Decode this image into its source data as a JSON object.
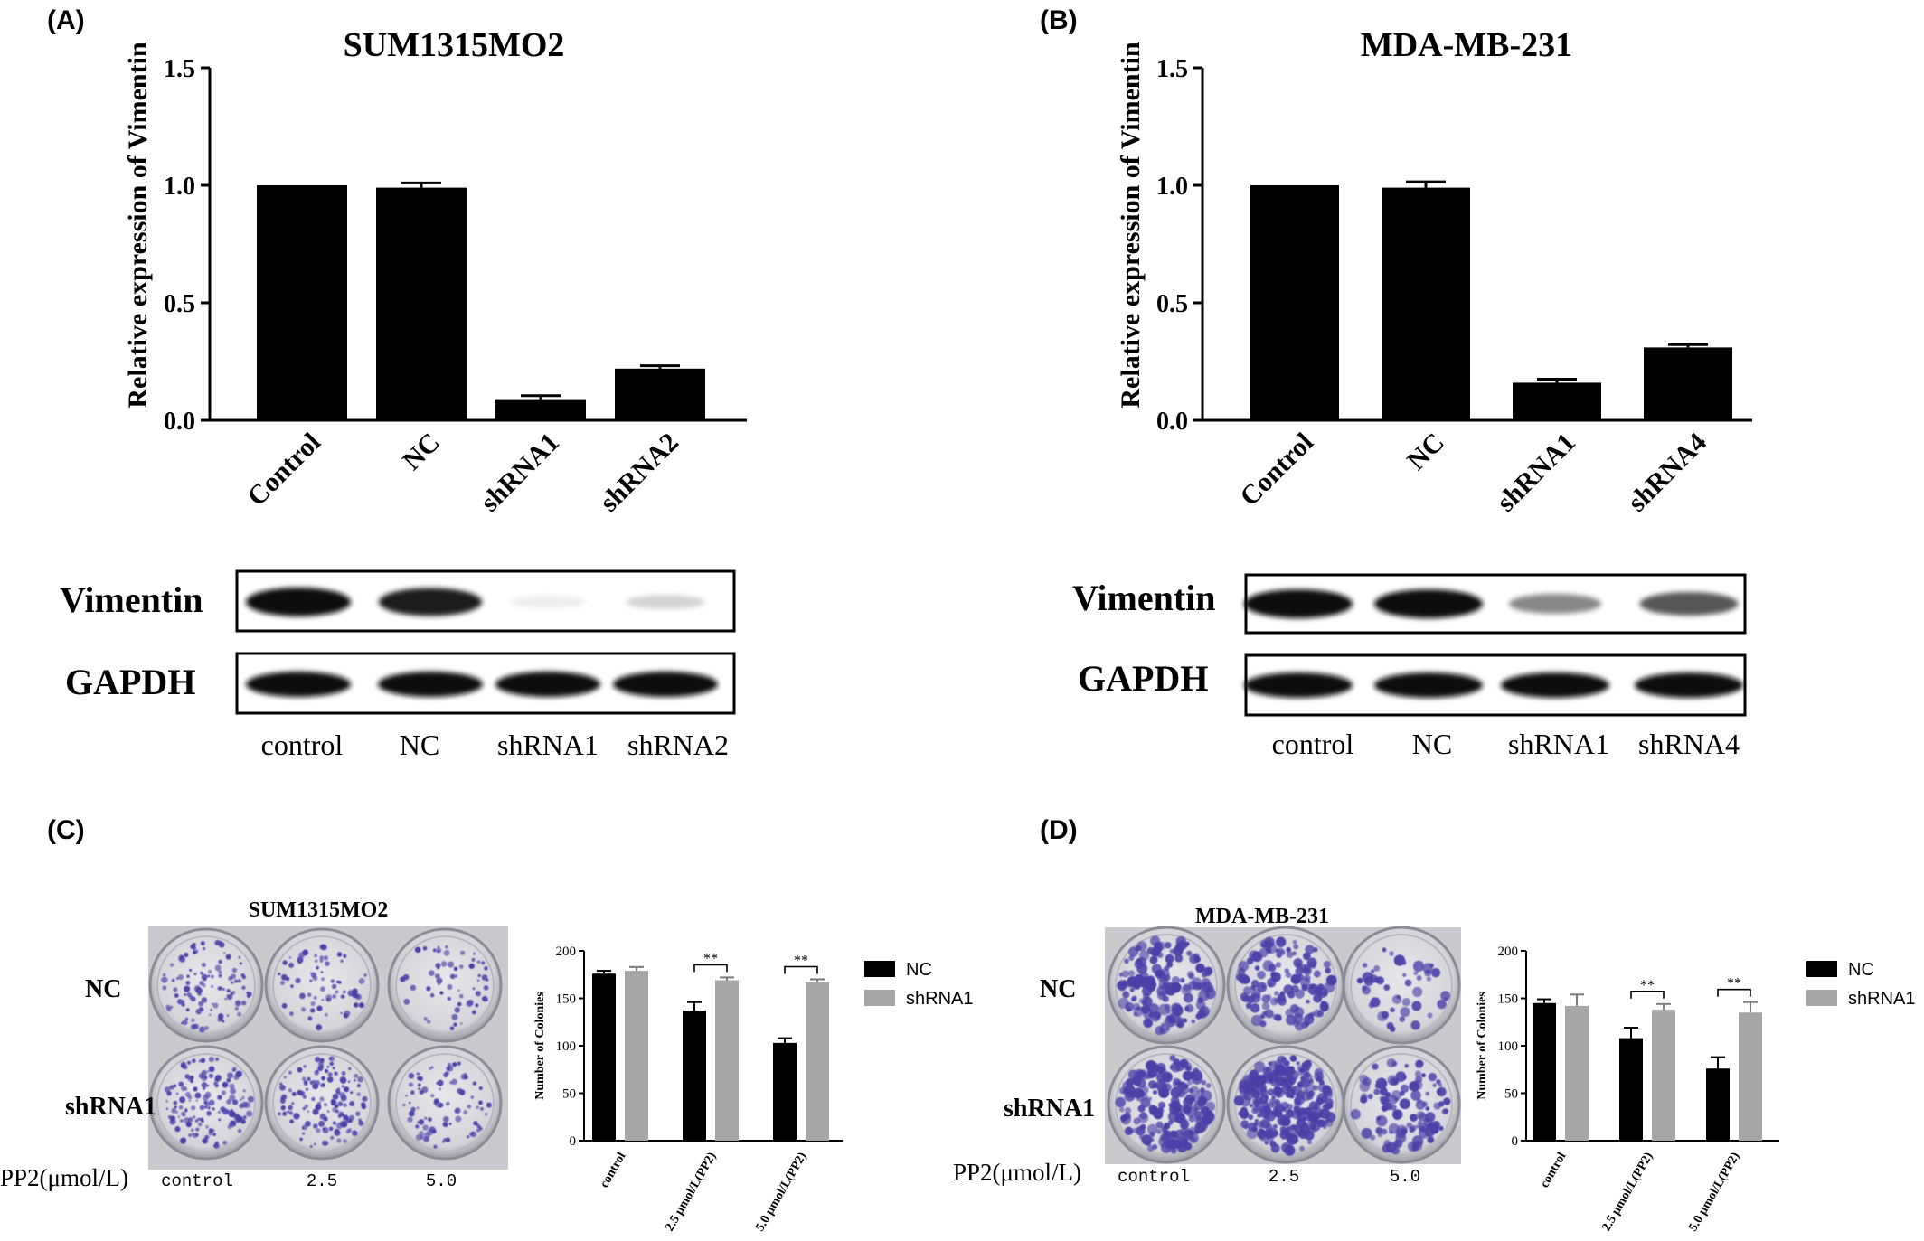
{
  "panels": {
    "a": "(A)",
    "b": "(B)",
    "c": "(C)",
    "d": "(D)"
  },
  "chart_data": [
    {
      "id": "A",
      "type": "bar",
      "title": "SUM1315MO2",
      "ylabel": "Relative expression of Vimentin",
      "xlabel": "",
      "ylim": [
        0,
        1.5
      ],
      "yticks": [
        "0.0",
        "0.5",
        "1.0",
        "1.5"
      ],
      "categories": [
        "Control",
        "NC",
        "shRNA1",
        "shRNA2"
      ],
      "values": [
        1.0,
        0.99,
        0.09,
        0.22
      ],
      "errors": [
        0.0,
        0.02,
        0.015,
        0.012
      ],
      "colors": [
        "#000000"
      ]
    },
    {
      "id": "B",
      "type": "bar",
      "title": "MDA-MB-231",
      "ylabel": "Relative expression of Vimentin",
      "xlabel": "",
      "ylim": [
        0,
        1.5
      ],
      "yticks": [
        "0.0",
        "0.5",
        "1.0",
        "1.5"
      ],
      "categories": [
        "Control",
        "NC",
        "shRNA1",
        "shRNA4"
      ],
      "values": [
        1.0,
        0.99,
        0.16,
        0.31
      ],
      "errors": [
        0.0,
        0.025,
        0.015,
        0.012
      ],
      "colors": [
        "#000000"
      ]
    },
    {
      "id": "C",
      "type": "bar",
      "ylabel": "Number of Colonies",
      "xlabel": "",
      "ylim": [
        0,
        200
      ],
      "yticks": [
        "0",
        "50",
        "100",
        "150",
        "200"
      ],
      "categories": [
        "control",
        "2.5 μmol/L(PP2)",
        "5.0 μmol/L(PP2)"
      ],
      "series": [
        {
          "name": "NC",
          "color": "#000000",
          "values": [
            176,
            137,
            103
          ],
          "errors": [
            3,
            9,
            5
          ]
        },
        {
          "name": "shRNA1",
          "color": "#a6a6a6",
          "values": [
            179,
            169,
            167
          ],
          "errors": [
            4,
            3,
            3
          ]
        }
      ],
      "significance": [
        "",
        "**",
        "**"
      ],
      "legend": "right"
    },
    {
      "id": "D",
      "type": "bar",
      "ylabel": "Number of Colonies",
      "xlabel": "",
      "ylim": [
        0,
        200
      ],
      "yticks": [
        "0",
        "50",
        "100",
        "150",
        "200"
      ],
      "categories": [
        "control",
        "2.5 μmol/L(PP2)",
        "5.0 μmol/L(PP2)"
      ],
      "series": [
        {
          "name": "NC",
          "color": "#000000",
          "values": [
            145,
            108,
            76
          ],
          "errors": [
            4,
            11,
            12
          ]
        },
        {
          "name": "shRNA1",
          "color": "#a6a6a6",
          "values": [
            142,
            138,
            135
          ],
          "errors": [
            12,
            6,
            11
          ]
        }
      ],
      "significance": [
        "",
        "**",
        "**"
      ],
      "legend": "right"
    }
  ],
  "blots": {
    "a": {
      "rows": [
        "Vimentin",
        "GAPDH"
      ],
      "lanes": [
        "control",
        "NC",
        "shRNA1",
        "shRNA2"
      ],
      "vimentin_intensity": [
        1.0,
        0.95,
        0.08,
        0.18
      ],
      "gapdh_intensity": [
        1.0,
        1.0,
        1.0,
        1.0
      ]
    },
    "b": {
      "rows": [
        "Vimentin",
        "GAPDH"
      ],
      "lanes": [
        "control",
        "NC",
        "shRNA1",
        "shRNA4"
      ],
      "vimentin_intensity": [
        1.0,
        1.0,
        0.5,
        0.7
      ],
      "gapdh_intensity": [
        1.0,
        1.0,
        1.0,
        1.0
      ]
    }
  },
  "plates": {
    "c": {
      "title": "SUM1315MO2",
      "rows": [
        "NC",
        "shRNA1"
      ],
      "pp2_label": "PP2(μmol/L)",
      "columns": [
        "control",
        "2.5",
        "5.0"
      ]
    },
    "d": {
      "title": "MDA-MB-231",
      "rows": [
        "NC",
        "shRNA1"
      ],
      "pp2_label": "PP2(μmol/L)",
      "columns": [
        "control",
        "2.5",
        "5.0"
      ]
    }
  }
}
